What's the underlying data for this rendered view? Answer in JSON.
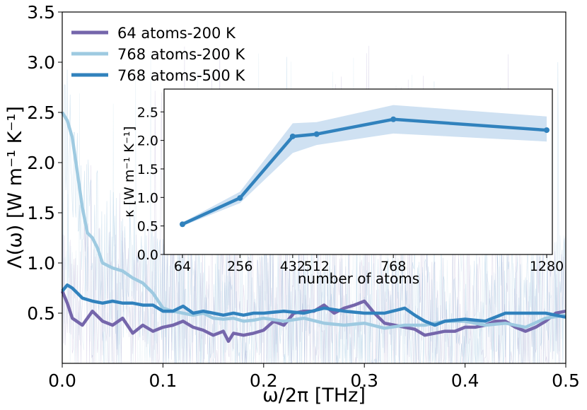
{
  "chart_data": [
    {
      "type": "line",
      "title": "",
      "xlabel": "ω/2π [THz]",
      "ylabel": "Λ(ω) [W m⁻¹ K⁻¹]",
      "xlim": [
        0.0,
        0.5
      ],
      "ylim": [
        0.0,
        3.5
      ],
      "xticks": [
        0.0,
        0.1,
        0.2,
        0.3,
        0.4,
        0.5
      ],
      "xtick_labels": [
        "0.0",
        "0.1",
        "0.2",
        "0.3",
        "0.4",
        "0.5"
      ],
      "yticks": [
        0.5,
        1.0,
        1.5,
        2.0,
        2.5,
        3.0,
        3.5
      ],
      "ytick_labels": [
        "0.5",
        "1.0",
        "1.5",
        "2.0",
        "2.5",
        "3.0",
        "3.5"
      ],
      "legend_position": "top-left",
      "series": [
        {
          "name": "64 atoms-200 K",
          "color": "#7566ab",
          "x": [
            0.0,
            0.005,
            0.01,
            0.02,
            0.03,
            0.04,
            0.05,
            0.06,
            0.07,
            0.08,
            0.09,
            0.1,
            0.11,
            0.12,
            0.13,
            0.14,
            0.15,
            0.16,
            0.165,
            0.17,
            0.18,
            0.19,
            0.2,
            0.21,
            0.22,
            0.23,
            0.24,
            0.25,
            0.26,
            0.27,
            0.28,
            0.29,
            0.3,
            0.31,
            0.32,
            0.33,
            0.34,
            0.35,
            0.36,
            0.37,
            0.38,
            0.39,
            0.4,
            0.41,
            0.42,
            0.43,
            0.44,
            0.45,
            0.46,
            0.47,
            0.48,
            0.49,
            0.5
          ],
          "y": [
            0.72,
            0.6,
            0.45,
            0.38,
            0.52,
            0.42,
            0.38,
            0.45,
            0.3,
            0.38,
            0.32,
            0.36,
            0.38,
            0.42,
            0.36,
            0.33,
            0.28,
            0.32,
            0.22,
            0.3,
            0.28,
            0.3,
            0.33,
            0.42,
            0.38,
            0.5,
            0.52,
            0.52,
            0.58,
            0.5,
            0.55,
            0.58,
            0.62,
            0.5,
            0.4,
            0.38,
            0.36,
            0.34,
            0.28,
            0.3,
            0.32,
            0.32,
            0.36,
            0.36,
            0.38,
            0.42,
            0.42,
            0.36,
            0.32,
            0.36,
            0.42,
            0.5,
            0.52
          ]
        },
        {
          "name": "768 atoms-200 K",
          "color": "#9ecae1",
          "x": [
            0.0,
            0.005,
            0.01,
            0.015,
            0.02,
            0.025,
            0.03,
            0.035,
            0.04,
            0.05,
            0.06,
            0.07,
            0.08,
            0.09,
            0.1,
            0.11,
            0.12,
            0.13,
            0.14,
            0.15,
            0.16,
            0.17,
            0.18,
            0.19,
            0.2,
            0.22,
            0.24,
            0.26,
            0.28,
            0.3,
            0.32,
            0.34,
            0.36,
            0.38,
            0.4,
            0.42,
            0.44,
            0.46,
            0.48,
            0.5
          ],
          "y": [
            2.5,
            2.42,
            2.25,
            1.9,
            1.55,
            1.3,
            1.25,
            1.15,
            1.0,
            0.95,
            0.92,
            0.85,
            0.8,
            0.7,
            0.55,
            0.52,
            0.5,
            0.48,
            0.5,
            0.45,
            0.44,
            0.45,
            0.42,
            0.43,
            0.45,
            0.42,
            0.45,
            0.4,
            0.38,
            0.4,
            0.35,
            0.38,
            0.38,
            0.42,
            0.42,
            0.38,
            0.4,
            0.36,
            0.45,
            0.48
          ]
        },
        {
          "name": "768 atoms-500 K",
          "color": "#3182bd",
          "x": [
            0.0,
            0.005,
            0.01,
            0.02,
            0.03,
            0.04,
            0.05,
            0.06,
            0.07,
            0.08,
            0.09,
            0.1,
            0.11,
            0.12,
            0.13,
            0.14,
            0.15,
            0.16,
            0.17,
            0.18,
            0.19,
            0.2,
            0.22,
            0.24,
            0.26,
            0.28,
            0.3,
            0.32,
            0.34,
            0.35,
            0.36,
            0.37,
            0.38,
            0.4,
            0.42,
            0.44,
            0.46,
            0.48,
            0.5
          ],
          "y": [
            0.72,
            0.78,
            0.75,
            0.65,
            0.62,
            0.6,
            0.62,
            0.6,
            0.6,
            0.58,
            0.58,
            0.52,
            0.52,
            0.57,
            0.5,
            0.52,
            0.5,
            0.48,
            0.5,
            0.48,
            0.5,
            0.5,
            0.52,
            0.5,
            0.55,
            0.52,
            0.5,
            0.5,
            0.55,
            0.48,
            0.42,
            0.38,
            0.42,
            0.44,
            0.42,
            0.5,
            0.5,
            0.5,
            0.46
          ]
        }
      ]
    },
    {
      "type": "line",
      "title": "",
      "xlabel": "number of atoms",
      "ylabel": "κ [W m⁻¹ K⁻¹]",
      "xlim": [
        0,
        1300
      ],
      "ylim": [
        0.0,
        2.9
      ],
      "xticks": [
        64,
        256,
        432,
        512,
        768,
        1280
      ],
      "xtick_labels": [
        "64",
        "256",
        "432",
        "512",
        "768",
        "1280"
      ],
      "yticks": [
        0.0,
        0.5,
        1.0,
        1.5,
        2.0,
        2.5
      ],
      "ytick_labels": [
        "0.0",
        "0.5",
        "1.0",
        "1.5",
        "2.0",
        "2.5"
      ],
      "series": [
        {
          "name": "κ",
          "color": "#3182bd",
          "x": [
            64,
            256,
            432,
            512,
            768,
            1280
          ],
          "y": [
            0.53,
            0.99,
            2.07,
            2.11,
            2.37,
            2.18
          ],
          "band_low": [
            0.5,
            0.9,
            1.78,
            1.92,
            2.12,
            1.98
          ],
          "band_high": [
            0.56,
            1.1,
            2.3,
            2.32,
            2.62,
            2.42
          ]
        }
      ]
    }
  ]
}
